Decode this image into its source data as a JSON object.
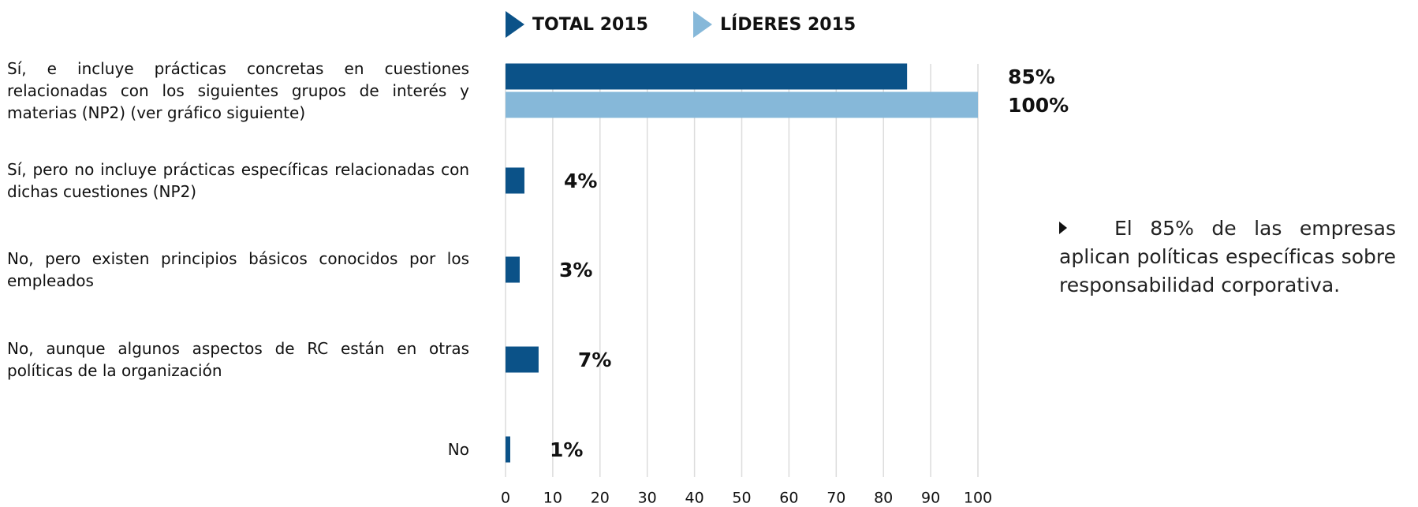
{
  "chart_data": {
    "type": "barh",
    "categories": [
      "Sí, e incluye prácticas concretas en cuestiones relacionadas con los siguientes grupos de interés y materias (NP2)  (ver gráfico siguiente)",
      "Sí, pero no incluye prácticas específicas relacionadas con dichas cuestiones (NP2)",
      "No, pero existen principios básicos conocidos por los empleados",
      "No, aunque algunos aspectos de RC están en otras políticas de la organización",
      "No"
    ],
    "series": [
      {
        "name": "TOTAL 2015",
        "color": "#0b5288",
        "values": [
          85,
          4,
          3,
          7,
          1
        ],
        "value_labels": [
          "85%",
          "4%",
          "3%",
          "7%",
          "1%"
        ]
      },
      {
        "name": "LÍDERES 2015",
        "color": "#86b8d9",
        "values": [
          100,
          null,
          null,
          null,
          null
        ],
        "value_labels": [
          "100%",
          null,
          null,
          null,
          null
        ]
      }
    ],
    "xlim": [
      0,
      100
    ],
    "xticks": [
      0,
      10,
      20,
      30,
      40,
      50,
      60,
      70,
      80,
      90,
      100
    ],
    "grid": true,
    "annotation": "El 85% de las empresas aplican políticas específicas sobre responsabilidad corporativa."
  }
}
